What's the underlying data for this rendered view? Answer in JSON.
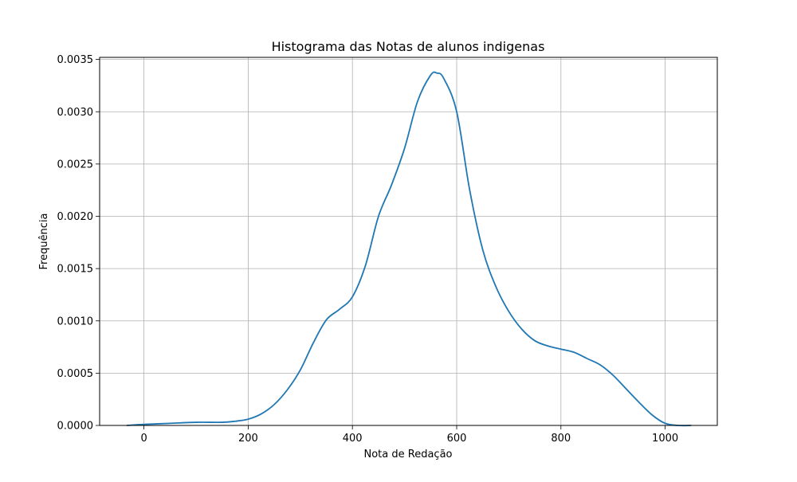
{
  "chart_data": {
    "type": "line",
    "title": "Histograma das Notas de alunos indigenas",
    "xlabel": "Nota de Redação",
    "ylabel": "Frequência",
    "xlim": [
      -85,
      1100
    ],
    "ylim": [
      0,
      0.00352
    ],
    "grid": true,
    "line_color": "#1f77b4",
    "x_ticks": [
      {
        "value": 0,
        "label": "0"
      },
      {
        "value": 200,
        "label": "200"
      },
      {
        "value": 400,
        "label": "400"
      },
      {
        "value": 600,
        "label": "600"
      },
      {
        "value": 800,
        "label": "800"
      },
      {
        "value": 1000,
        "label": "1000"
      }
    ],
    "y_ticks": [
      {
        "value": 0,
        "label": "0.0000"
      },
      {
        "value": 0.0005,
        "label": "0.0005"
      },
      {
        "value": 0.001,
        "label": "0.0010"
      },
      {
        "value": 0.0015,
        "label": "0.0015"
      },
      {
        "value": 0.002,
        "label": "0.0020"
      },
      {
        "value": 0.0025,
        "label": "0.0025"
      },
      {
        "value": 0.003,
        "label": "0.0030"
      },
      {
        "value": 0.0035,
        "label": "0.0035"
      }
    ],
    "series": [
      {
        "x": [
          -33,
          0,
          50,
          100,
          150,
          175,
          200,
          225,
          250,
          275,
          300,
          325,
          350,
          375,
          400,
          425,
          450,
          475,
          500,
          525,
          550,
          562,
          575,
          600,
          625,
          650,
          675,
          700,
          725,
          750,
          775,
          800,
          825,
          850,
          875,
          900,
          925,
          950,
          975,
          1000,
          1025,
          1050
        ],
        "y": [
          0.0,
          1e-05,
          2e-05,
          3e-05,
          3e-05,
          4e-05,
          6e-05,
          0.00011,
          0.0002,
          0.00034,
          0.00053,
          0.00079,
          0.00101,
          0.00111,
          0.00123,
          0.00153,
          0.002,
          0.0023,
          0.00265,
          0.0031,
          0.00335,
          0.00337,
          0.00332,
          0.003,
          0.00225,
          0.00168,
          0.00133,
          0.00109,
          0.00092,
          0.00081,
          0.00076,
          0.00073,
          0.0007,
          0.00064,
          0.00058,
          0.00048,
          0.00035,
          0.00022,
          0.0001,
          2e-05,
          0.0,
          0.0
        ]
      }
    ]
  }
}
